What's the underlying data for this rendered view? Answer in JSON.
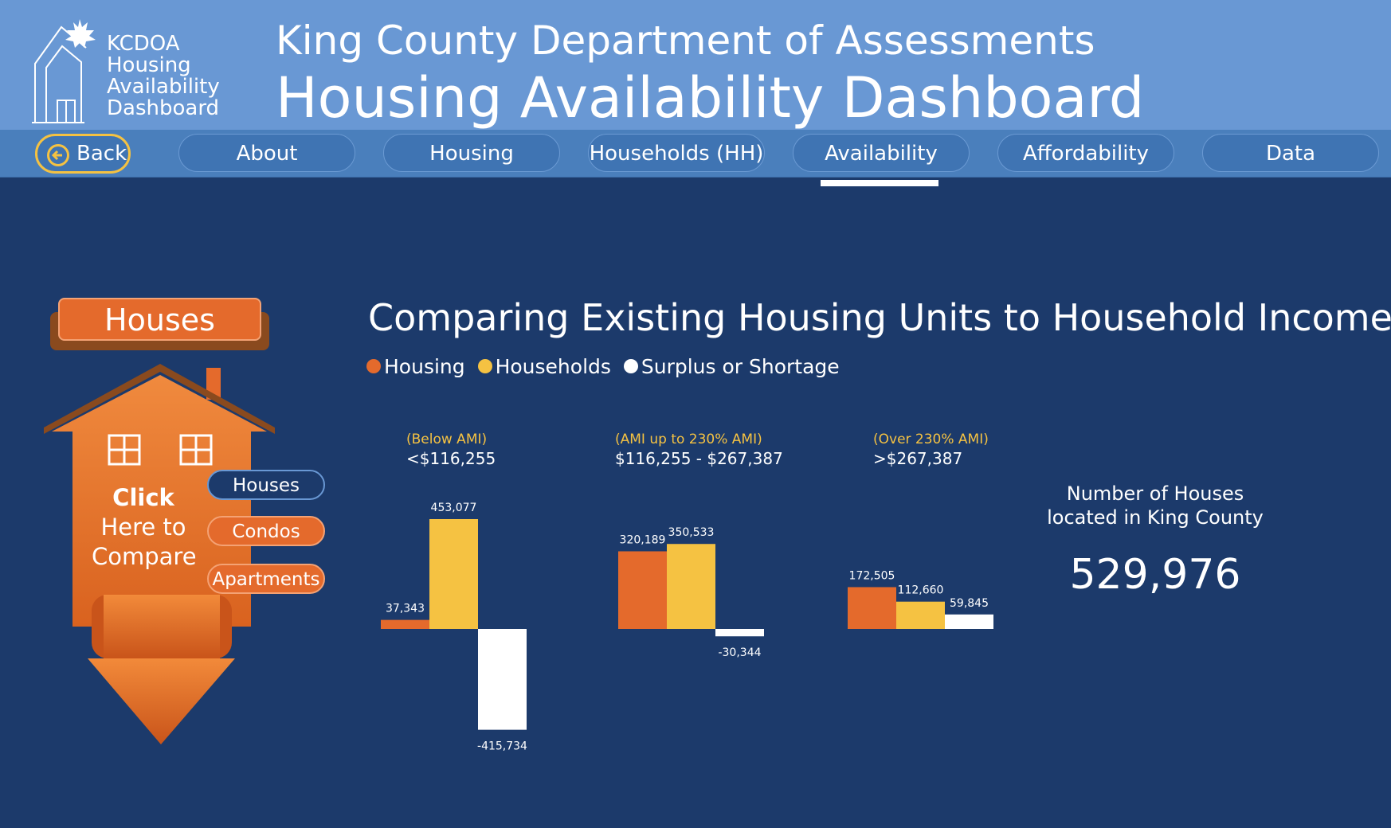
{
  "logo": {
    "line1": "KCDOA",
    "line2": "Housing",
    "line3": "Availability",
    "line4": "Dashboard"
  },
  "header": {
    "title": "King County Department of Assessments",
    "subtitle": "Housing Availability Dashboard"
  },
  "nav": {
    "back_label": "Back",
    "tabs": [
      "About",
      "Housing",
      "Households (HH)",
      "Availability",
      "Affordability",
      "Data"
    ],
    "active_tab": "Availability"
  },
  "left_panel": {
    "selected_label": "Houses",
    "click_bold": "Click",
    "click_line2": "Here to",
    "click_line3": "Compare",
    "options": [
      "Houses",
      "Condos",
      "Apartments"
    ]
  },
  "colors": {
    "housing": "#e46a2c",
    "households": "#f5c242",
    "surplus": "#ffffff",
    "background": "#1c3a6b",
    "header": "#6998d4"
  },
  "chart_data": {
    "type": "bar",
    "title": "Comparing Existing Housing Units to Household Incomes",
    "legend": [
      "Housing",
      "Households",
      "Surplus or Shortage"
    ],
    "legend_position": "top-left",
    "groups": [
      {
        "sub": "(Below AMI)",
        "label": "<$116,255",
        "labels": [
          "37,343",
          "453,077",
          "-415,734"
        ]
      },
      {
        "sub": "(AMI up to 230% AMI)",
        "label": "$116,255 - $267,387",
        "labels": [
          "320,189",
          "350,533",
          "-30,344"
        ]
      },
      {
        "sub": "(Over 230% AMI)",
        "label": ">$267,387",
        "labels": [
          "172,505",
          "112,660",
          "59,845"
        ]
      }
    ],
    "series": [
      {
        "name": "Housing",
        "values": [
          37343,
          320189,
          172505
        ]
      },
      {
        "name": "Households",
        "values": [
          453077,
          350533,
          112660
        ]
      },
      {
        "name": "Surplus or Shortage",
        "values": [
          -415734,
          -30344,
          59845
        ]
      }
    ]
  },
  "kpi": {
    "label_line1": "Number of Houses",
    "label_line2": "located in King County",
    "value": "529,976"
  }
}
